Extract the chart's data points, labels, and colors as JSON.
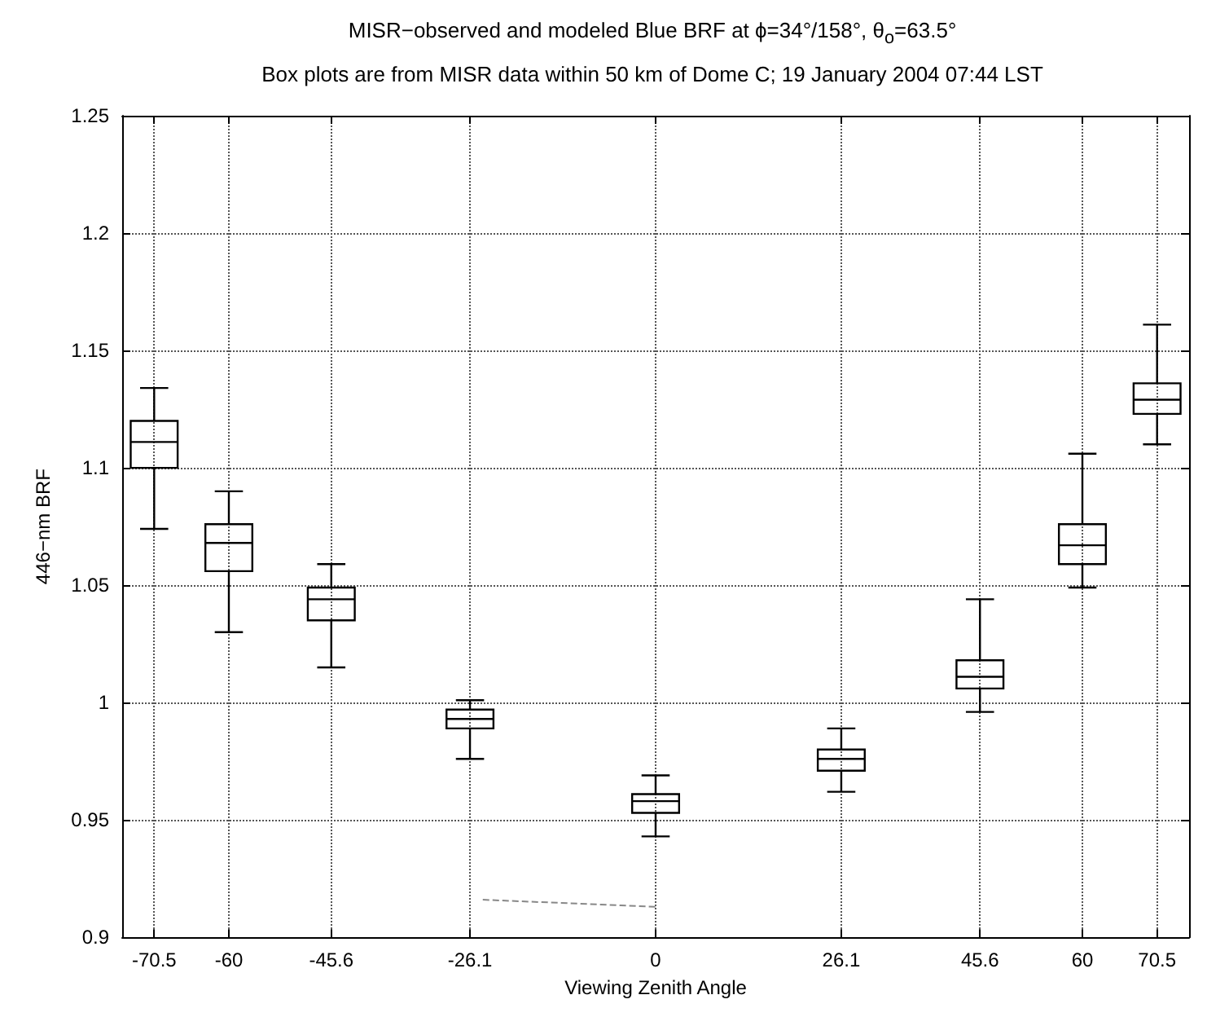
{
  "chart_data": {
    "type": "box",
    "title": "MISR−observed and modeled Blue BRF at ϕ=34°/158°, θ$_{o}$=63.5°",
    "subtitle": "Box plots are from MISR data within 50 km of Dome C; 19 January 2004 07:44 LST",
    "xlabel": "Viewing Zenith Angle",
    "ylabel": "446−nm BRF",
    "x": [
      -70.5,
      -60,
      -45.6,
      -26.1,
      0,
      26.1,
      45.6,
      60,
      70.5
    ],
    "boxes": [
      {
        "low": 1.074,
        "q1": 1.1,
        "median": 1.111,
        "q3": 1.12,
        "high": 1.134
      },
      {
        "low": 1.03,
        "q1": 1.056,
        "median": 1.068,
        "q3": 1.076,
        "high": 1.09
      },
      {
        "low": 1.015,
        "q1": 1.035,
        "median": 1.044,
        "q3": 1.049,
        "high": 1.059
      },
      {
        "low": 0.976,
        "q1": 0.989,
        "median": 0.993,
        "q3": 0.997,
        "high": 1.001
      },
      {
        "low": 0.943,
        "q1": 0.953,
        "median": 0.958,
        "q3": 0.961,
        "high": 0.969
      },
      {
        "low": 0.962,
        "q1": 0.971,
        "median": 0.976,
        "q3": 0.98,
        "high": 0.989
      },
      {
        "low": 0.996,
        "q1": 1.006,
        "median": 1.011,
        "q3": 1.018,
        "high": 1.044
      },
      {
        "low": 1.049,
        "q1": 1.059,
        "median": 1.067,
        "q3": 1.076,
        "high": 1.106
      },
      {
        "low": 1.11,
        "q1": 1.123,
        "median": 1.129,
        "q3": 1.136,
        "high": 1.161
      }
    ],
    "color": "#000000",
    "series": [
      {
        "type": "line",
        "x": [
          -24.3,
          0
        ],
        "values": [
          0.916,
          0.913
        ],
        "color": "#888888",
        "line_style": "dashed"
      }
    ],
    "xlim": [
      -75,
      75
    ],
    "xticks": [
      -70.5,
      -60,
      -45.6,
      -26.1,
      0,
      26.1,
      45.6,
      60,
      70.5
    ],
    "ylim": [
      0.9,
      1.25
    ],
    "yticks": [
      0.9,
      0.95,
      1,
      1.05,
      1.1,
      1.15,
      1.2,
      1.25
    ],
    "grid": true,
    "marker": "none"
  }
}
